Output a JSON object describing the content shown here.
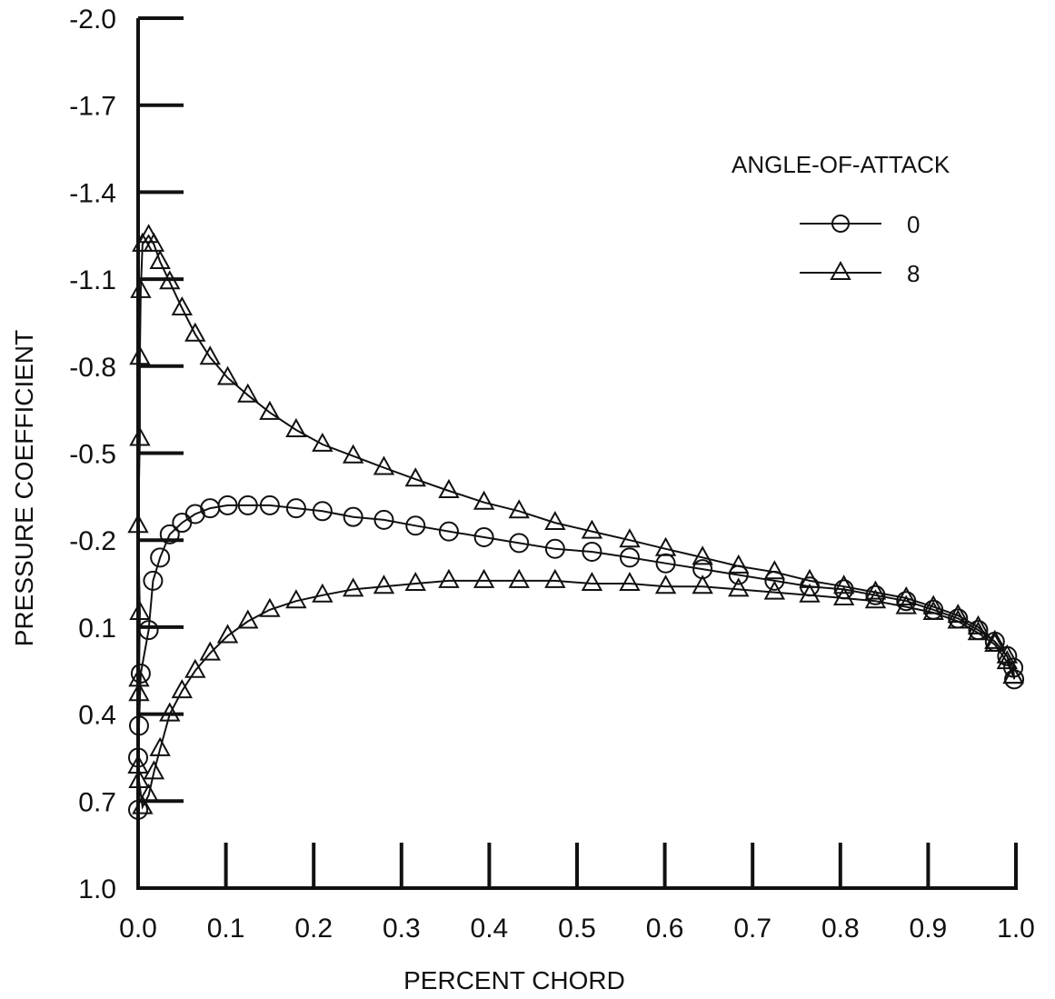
{
  "chart_data": {
    "type": "line",
    "xlabel": "PERCENT CHORD",
    "ylabel": "PRESSURE COEFFICIENT",
    "xlim": [
      0.0,
      1.0
    ],
    "ylim": [
      1.0,
      -2.0
    ],
    "y_inverted": true,
    "xticks": [
      0.0,
      0.1,
      0.2,
      0.3,
      0.4,
      0.5,
      0.6,
      0.7,
      0.8,
      0.9,
      1.0
    ],
    "xtick_labels": [
      "0.0",
      "0.1",
      "0.2",
      "0.3",
      "0.4",
      "0.5",
      "0.6",
      "0.7",
      "0.8",
      "0.9",
      "1.0"
    ],
    "yticks": [
      -2.0,
      -1.7,
      -1.4,
      -1.1,
      -0.8,
      -0.5,
      -0.2,
      0.1,
      0.4,
      0.7,
      1.0
    ],
    "ytick_labels": [
      "-2.0",
      "-1.7",
      "-1.4",
      "-1.1",
      "-0.8",
      "-0.5",
      "-0.2",
      "0.1",
      "0.4",
      "0.7",
      "1.0"
    ],
    "grid": false,
    "legend": {
      "title": "ANGLE-OF-ATTACK",
      "position": "top-right"
    },
    "series": [
      {
        "name": "0",
        "marker": "circle",
        "points": [
          [
            0.0,
            0.73
          ],
          [
            0.0,
            0.55
          ],
          [
            0.001,
            0.44
          ],
          [
            0.003,
            0.26
          ],
          [
            0.012,
            0.11
          ],
          [
            0.017,
            -0.06
          ],
          [
            0.025,
            -0.14
          ],
          [
            0.036,
            -0.22
          ],
          [
            0.05,
            -0.26
          ],
          [
            0.065,
            -0.29
          ],
          [
            0.082,
            -0.31
          ],
          [
            0.102,
            -0.32
          ],
          [
            0.125,
            -0.32
          ],
          [
            0.15,
            -0.32
          ],
          [
            0.18,
            -0.31
          ],
          [
            0.21,
            -0.3
          ],
          [
            0.245,
            -0.28
          ],
          [
            0.28,
            -0.27
          ],
          [
            0.316,
            -0.25
          ],
          [
            0.354,
            -0.23
          ],
          [
            0.394,
            -0.21
          ],
          [
            0.434,
            -0.19
          ],
          [
            0.475,
            -0.17
          ],
          [
            0.517,
            -0.16
          ],
          [
            0.56,
            -0.14
          ],
          [
            0.601,
            -0.12
          ],
          [
            0.643,
            -0.1
          ],
          [
            0.684,
            -0.08
          ],
          [
            0.725,
            -0.06
          ],
          [
            0.765,
            -0.04
          ],
          [
            0.804,
            -0.03
          ],
          [
            0.84,
            -0.01
          ],
          [
            0.875,
            0.01
          ],
          [
            0.906,
            0.04
          ],
          [
            0.934,
            0.07
          ],
          [
            0.957,
            0.11
          ],
          [
            0.976,
            0.15
          ],
          [
            0.99,
            0.2
          ],
          [
            0.997,
            0.24
          ],
          [
            0.998,
            0.28
          ]
        ]
      },
      {
        "name": "8",
        "marker": "triangle",
        "upper_points": [
          [
            0.001,
            0.28
          ],
          [
            0.002,
            0.05
          ],
          [
            0.0,
            -0.25
          ],
          [
            0.002,
            -0.55
          ],
          [
            0.002,
            -0.83
          ],
          [
            0.003,
            -1.06
          ],
          [
            0.005,
            -1.22
          ],
          [
            0.012,
            -1.25
          ],
          [
            0.018,
            -1.22
          ],
          [
            0.025,
            -1.16
          ],
          [
            0.036,
            -1.09
          ],
          [
            0.05,
            -1.0
          ],
          [
            0.065,
            -0.91
          ],
          [
            0.082,
            -0.83
          ],
          [
            0.102,
            -0.76
          ],
          [
            0.125,
            -0.7
          ],
          [
            0.15,
            -0.64
          ],
          [
            0.18,
            -0.58
          ],
          [
            0.21,
            -0.53
          ],
          [
            0.245,
            -0.49
          ],
          [
            0.28,
            -0.45
          ],
          [
            0.316,
            -0.41
          ],
          [
            0.354,
            -0.37
          ],
          [
            0.394,
            -0.33
          ],
          [
            0.434,
            -0.3
          ],
          [
            0.475,
            -0.26
          ],
          [
            0.517,
            -0.23
          ],
          [
            0.56,
            -0.2
          ],
          [
            0.601,
            -0.17
          ],
          [
            0.643,
            -0.14
          ],
          [
            0.684,
            -0.11
          ],
          [
            0.725,
            -0.09
          ],
          [
            0.765,
            -0.06
          ],
          [
            0.804,
            -0.04
          ],
          [
            0.84,
            -0.02
          ],
          [
            0.875,
            0.0
          ],
          [
            0.906,
            0.03
          ],
          [
            0.934,
            0.06
          ],
          [
            0.957,
            0.1
          ],
          [
            0.976,
            0.15
          ],
          [
            0.99,
            0.2
          ],
          [
            0.997,
            0.27
          ]
        ],
        "lower_points": [
          [
            0.001,
            0.33
          ],
          [
            0.0,
            0.58
          ],
          [
            0.001,
            0.63
          ],
          [
            0.005,
            0.72
          ],
          [
            0.012,
            0.68
          ],
          [
            0.018,
            0.6
          ],
          [
            0.025,
            0.52
          ],
          [
            0.036,
            0.4
          ],
          [
            0.05,
            0.32
          ],
          [
            0.065,
            0.25
          ],
          [
            0.082,
            0.19
          ],
          [
            0.102,
            0.13
          ],
          [
            0.125,
            0.08
          ],
          [
            0.15,
            0.04
          ],
          [
            0.18,
            0.01
          ],
          [
            0.21,
            -0.01
          ],
          [
            0.245,
            -0.03
          ],
          [
            0.28,
            -0.04
          ],
          [
            0.316,
            -0.05
          ],
          [
            0.354,
            -0.06
          ],
          [
            0.394,
            -0.06
          ],
          [
            0.434,
            -0.06
          ],
          [
            0.475,
            -0.06
          ],
          [
            0.517,
            -0.05
          ],
          [
            0.56,
            -0.05
          ],
          [
            0.601,
            -0.04
          ],
          [
            0.643,
            -0.04
          ],
          [
            0.684,
            -0.03
          ],
          [
            0.725,
            -0.02
          ],
          [
            0.765,
            -0.01
          ],
          [
            0.804,
            0.0
          ],
          [
            0.84,
            0.01
          ],
          [
            0.875,
            0.03
          ],
          [
            0.906,
            0.05
          ],
          [
            0.934,
            0.08
          ],
          [
            0.957,
            0.12
          ],
          [
            0.976,
            0.16
          ],
          [
            0.99,
            0.22
          ],
          [
            0.997,
            0.27
          ]
        ]
      }
    ]
  }
}
